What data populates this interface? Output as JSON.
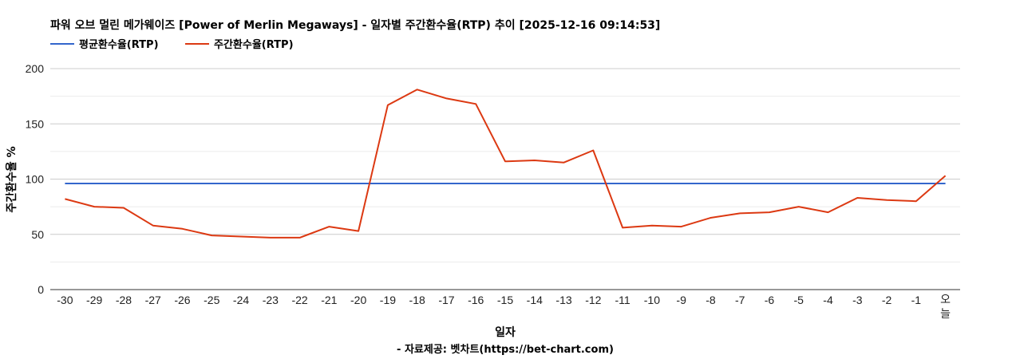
{
  "chart_data": {
    "type": "line",
    "title": "파워 오브 멀린 메가웨이즈 [Power of Merlin Megaways] - 일자별 주간환수율(RTP) 추이 [2025-12-16 09:14:53]",
    "xlabel": "일자",
    "ylabel": "주간환수율 %",
    "source": "- 자료제공: 벳차트(https://bet-chart.com)",
    "ylim": [
      0,
      200
    ],
    "yticks": [
      "0",
      "50",
      "100",
      "150",
      "200"
    ],
    "grid": true,
    "legend_position": "top-left",
    "categories": [
      "-30",
      "-29",
      "-28",
      "-27",
      "-26",
      "-25",
      "-24",
      "-23",
      "-22",
      "-21",
      "-20",
      "-19",
      "-18",
      "-17",
      "-16",
      "-15",
      "-14",
      "-13",
      "-12",
      "-11",
      "-10",
      "-9",
      "-8",
      "-7",
      "-6",
      "-5",
      "-4",
      "-3",
      "-2",
      "-1",
      "오늘"
    ],
    "series": [
      {
        "name": "평균환수율(RTP)",
        "color": "#3366cc",
        "values": [
          96,
          96,
          96,
          96,
          96,
          96,
          96,
          96,
          96,
          96,
          96,
          96,
          96,
          96,
          96,
          96,
          96,
          96,
          96,
          96,
          96,
          96,
          96,
          96,
          96,
          96,
          96,
          96,
          96,
          96,
          96
        ]
      },
      {
        "name": "주간환수율(RTP)",
        "color": "#dc3912",
        "values": [
          82,
          75,
          74,
          58,
          55,
          49,
          48,
          47,
          47,
          57,
          53,
          167,
          181,
          173,
          168,
          116,
          117,
          115,
          126,
          56,
          58,
          57,
          65,
          69,
          70,
          75,
          70,
          83,
          81,
          80,
          103
        ]
      }
    ]
  }
}
